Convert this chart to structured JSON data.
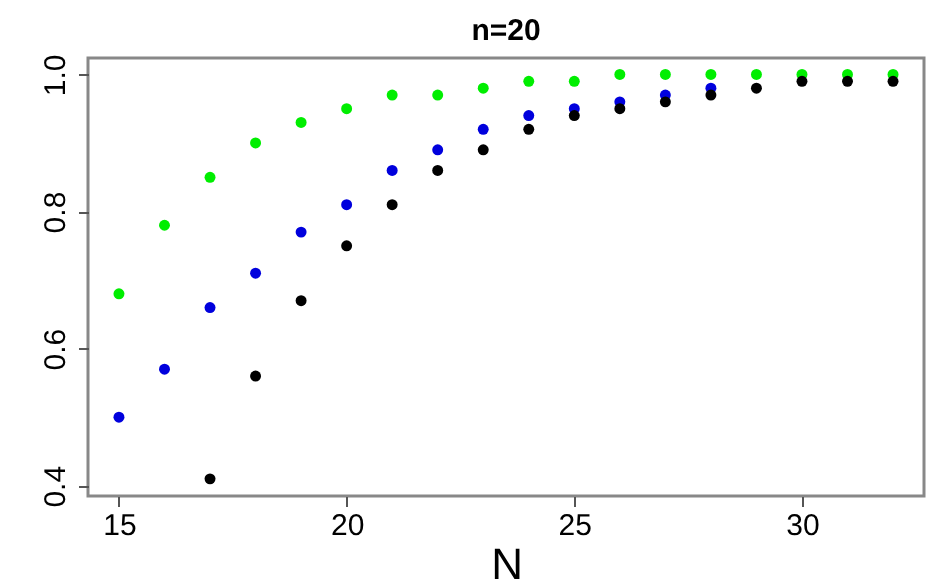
{
  "chart_data": {
    "type": "scatter",
    "title": "n=20",
    "xlabel": "N",
    "x": [
      15,
      16,
      17,
      18,
      19,
      20,
      21,
      22,
      23,
      24,
      25,
      26,
      27,
      28,
      29,
      30,
      31,
      32
    ],
    "series": [
      {
        "color": "#00ee00",
        "values": [
          0.68,
          0.78,
          0.85,
          0.9,
          0.93,
          0.95,
          0.97,
          0.97,
          0.98,
          0.99,
          0.99,
          1.0,
          1.0,
          1.0,
          1.0,
          1.0,
          1.0,
          1.0
        ]
      },
      {
        "color": "#0000dd",
        "values": [
          0.5,
          0.57,
          0.66,
          0.71,
          0.77,
          0.81,
          0.86,
          0.89,
          0.92,
          0.94,
          0.95,
          0.96,
          0.97,
          0.98,
          null,
          null,
          null,
          null
        ]
      },
      {
        "color": "#000000",
        "values": [
          null,
          null,
          0.41,
          0.56,
          0.67,
          0.75,
          0.81,
          0.86,
          0.89,
          0.92,
          0.94,
          0.95,
          0.96,
          0.97,
          0.98,
          0.99,
          0.99,
          0.99
        ]
      }
    ],
    "xlim": [
      14.32,
      32.68
    ],
    "xticks": [
      15,
      20,
      25,
      30
    ],
    "ylim": [
      0.385,
      1.024
    ],
    "yticks": [
      0.4,
      0.6,
      0.8,
      {
        "value": 1,
        "label": "1.0"
      }
    ],
    "marker": "circle",
    "grid": false,
    "legend": false
  }
}
